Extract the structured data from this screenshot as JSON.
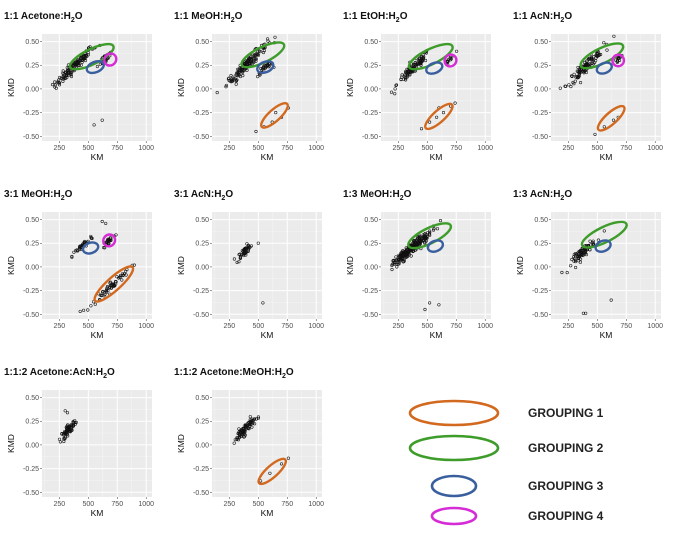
{
  "axis_labels": {
    "x": "KM",
    "y": "KMD"
  },
  "legend": [
    {
      "label": "GROUPING 1",
      "color": "#d2691e"
    },
    {
      "label": "GROUPING 2",
      "color": "#3e9c2a"
    },
    {
      "label": "GROUPING 3",
      "color": "#3a5f9e"
    },
    {
      "label": "GROUPING 4",
      "color": "#d62cd6"
    }
  ],
  "chart_data": [
    {
      "type": "scatter",
      "title": {
        "main": "1:1 Acetone:H",
        "sub": "2",
        "tail": "O"
      },
      "xlim": [
        100,
        1050
      ],
      "ylim": [
        -0.55,
        0.58
      ],
      "xticks": [
        250,
        500,
        750,
        1000
      ],
      "yticks": [
        0.5,
        0.25,
        0.0,
        -0.25,
        -0.5
      ],
      "xlabel": "KM",
      "ylabel": "KMD",
      "clusters": [
        {
          "cx": 380,
          "cy": 0.24,
          "sx": 150,
          "sy": 0.06,
          "n": 130,
          "slope": 0.0012
        },
        {
          "cx": 650,
          "cy": 0.33,
          "sx": 60,
          "sy": 0.05,
          "n": 30,
          "slope": 0.001
        }
      ],
      "points": [
        [
          550,
          -0.38
        ],
        [
          620,
          -0.33
        ],
        [
          560,
          0.44
        ],
        [
          600,
          0.46
        ]
      ],
      "ellipses": [
        {
          "group": 2,
          "cx": 530,
          "cy": 0.34,
          "rx": 380,
          "ry": 0.08,
          "angle": 0.0006
        },
        {
          "group": 3,
          "cx": 560,
          "cy": 0.23,
          "rx": 120,
          "ry": 0.055,
          "angle": 0.0005
        },
        {
          "group": 4,
          "cx": 690,
          "cy": 0.31,
          "rx": 75,
          "ry": 0.06,
          "angle": 0.0012
        }
      ]
    },
    {
      "type": "scatter",
      "title": {
        "main": "1:1 MeOH:H",
        "sub": "2",
        "tail": "O"
      },
      "xlim": [
        100,
        1050
      ],
      "ylim": [
        -0.55,
        0.58
      ],
      "xticks": [
        250,
        500,
        750,
        1000
      ],
      "yticks": [
        0.5,
        0.25,
        0.0,
        -0.25,
        -0.5
      ],
      "xlabel": "KM",
      "ylabel": "KMD",
      "clusters": [
        {
          "cx": 400,
          "cy": 0.26,
          "sx": 160,
          "sy": 0.06,
          "n": 150,
          "slope": 0.0012
        },
        {
          "cx": 560,
          "cy": 0.22,
          "sx": 60,
          "sy": 0.04,
          "n": 30,
          "slope": 0.0008
        }
      ],
      "points": [
        [
          550,
          -0.4
        ],
        [
          620,
          -0.35
        ],
        [
          700,
          -0.3
        ],
        [
          760,
          -0.2
        ],
        [
          480,
          -0.45
        ],
        [
          650,
          -0.25
        ]
      ],
      "ellipses": [
        {
          "group": 1,
          "cx": 640,
          "cy": -0.28,
          "rx": 260,
          "ry": 0.06,
          "angle": 0.0011
        },
        {
          "group": 2,
          "cx": 540,
          "cy": 0.36,
          "rx": 370,
          "ry": 0.08,
          "angle": 0.0006
        },
        {
          "group": 3,
          "cx": 560,
          "cy": 0.23,
          "rx": 110,
          "ry": 0.055,
          "angle": 0.0005
        }
      ]
    },
    {
      "type": "scatter",
      "title": {
        "main": "1:1 EtOH:H",
        "sub": "2",
        "tail": "O"
      },
      "xlim": [
        100,
        1050
      ],
      "ylim": [
        -0.55,
        0.58
      ],
      "xticks": [
        250,
        500,
        750,
        1000
      ],
      "yticks": [
        0.5,
        0.25,
        0.0,
        -0.25,
        -0.5
      ],
      "xlabel": "KM",
      "ylabel": "KMD",
      "clusters": [
        {
          "cx": 380,
          "cy": 0.22,
          "sx": 130,
          "sy": 0.06,
          "n": 110,
          "slope": 0.0012
        },
        {
          "cx": 700,
          "cy": 0.32,
          "sx": 40,
          "sy": 0.04,
          "n": 14,
          "slope": 0.0012
        }
      ],
      "points": [
        [
          450,
          -0.42
        ],
        [
          520,
          -0.35
        ],
        [
          580,
          -0.3
        ],
        [
          640,
          -0.25
        ],
        [
          700,
          -0.18
        ],
        [
          740,
          -0.15
        ],
        [
          600,
          -0.2
        ]
      ],
      "ellipses": [
        {
          "group": 1,
          "cx": 600,
          "cy": -0.29,
          "rx": 270,
          "ry": 0.06,
          "angle": 0.0011
        },
        {
          "group": 2,
          "cx": 530,
          "cy": 0.34,
          "rx": 380,
          "ry": 0.08,
          "angle": 0.0006
        },
        {
          "group": 3,
          "cx": 560,
          "cy": 0.22,
          "rx": 110,
          "ry": 0.05,
          "angle": 0.0005
        },
        {
          "group": 4,
          "cx": 700,
          "cy": 0.3,
          "rx": 70,
          "ry": 0.06,
          "angle": 0.0012
        }
      ]
    },
    {
      "type": "scatter",
      "title": {
        "main": "1:1 AcN:H",
        "sub": "2",
        "tail": "O"
      },
      "xlim": [
        100,
        1050
      ],
      "ylim": [
        -0.55,
        0.58
      ],
      "xticks": [
        250,
        500,
        750,
        1000
      ],
      "yticks": [
        0.5,
        0.25,
        0.0,
        -0.25,
        -0.5
      ],
      "xlabel": "KM",
      "ylabel": "KMD",
      "clusters": [
        {
          "cx": 400,
          "cy": 0.24,
          "sx": 140,
          "sy": 0.06,
          "n": 110,
          "slope": 0.0012
        },
        {
          "cx": 680,
          "cy": 0.31,
          "sx": 40,
          "sy": 0.04,
          "n": 14,
          "slope": 0.0012
        }
      ],
      "points": [
        [
          480,
          -0.48
        ],
        [
          560,
          -0.4
        ],
        [
          640,
          -0.33
        ],
        [
          680,
          -0.3
        ]
      ],
      "ellipses": [
        {
          "group": 1,
          "cx": 620,
          "cy": -0.31,
          "rx": 260,
          "ry": 0.06,
          "angle": 0.0011
        },
        {
          "group": 2,
          "cx": 540,
          "cy": 0.35,
          "rx": 370,
          "ry": 0.08,
          "angle": 0.0006
        },
        {
          "group": 3,
          "cx": 560,
          "cy": 0.22,
          "rx": 100,
          "ry": 0.05,
          "angle": 0.0005
        },
        {
          "group": 4,
          "cx": 680,
          "cy": 0.3,
          "rx": 65,
          "ry": 0.06,
          "angle": 0.0012
        }
      ]
    },
    {
      "type": "scatter",
      "title": {
        "main": "3:1 MeOH:H",
        "sub": "2",
        "tail": "O"
      },
      "xlim": [
        100,
        1050
      ],
      "ylim": [
        -0.55,
        0.58
      ],
      "xticks": [
        250,
        500,
        750,
        1000
      ],
      "yticks": [
        0.5,
        0.25,
        0.0,
        -0.25,
        -0.5
      ],
      "xlabel": "KM",
      "ylabel": "KMD",
      "clusters": [
        {
          "cx": 450,
          "cy": 0.22,
          "sx": 80,
          "sy": 0.04,
          "n": 40,
          "slope": 0.0012
        },
        {
          "cx": 680,
          "cy": 0.28,
          "sx": 50,
          "sy": 0.04,
          "n": 25,
          "slope": 0.0012
        },
        {
          "cx": 700,
          "cy": -0.2,
          "sx": 150,
          "sy": 0.05,
          "n": 60,
          "slope": 0.0011
        }
      ],
      "points": [
        [
          620,
          0.48
        ],
        [
          650,
          0.46
        ],
        [
          430,
          -0.47
        ]
      ],
      "ellipses": [
        {
          "group": 1,
          "cx": 720,
          "cy": -0.18,
          "rx": 400,
          "ry": 0.07,
          "angle": 0.0011
        },
        {
          "group": 3,
          "cx": 520,
          "cy": 0.2,
          "rx": 100,
          "ry": 0.055,
          "angle": 0.0004
        },
        {
          "group": 4,
          "cx": 680,
          "cy": 0.28,
          "rx": 70,
          "ry": 0.06,
          "angle": 0.0012
        }
      ]
    },
    {
      "type": "scatter",
      "title": {
        "main": "3:1 AcN:H",
        "sub": "2",
        "tail": "O"
      },
      "xlim": [
        100,
        1050
      ],
      "ylim": [
        -0.55,
        0.58
      ],
      "xticks": [
        250,
        500,
        750,
        1000
      ],
      "yticks": [
        0.5,
        0.25,
        0.0,
        -0.25,
        -0.5
      ],
      "xlabel": "KM",
      "ylabel": "KMD",
      "clusters": [
        {
          "cx": 380,
          "cy": 0.16,
          "sx": 60,
          "sy": 0.05,
          "n": 45,
          "slope": 0.0012
        }
      ],
      "points": [
        [
          540,
          -0.38
        ],
        [
          500,
          0.25
        ]
      ],
      "ellipses": []
    },
    {
      "type": "scatter",
      "title": {
        "main": "1:3 MeOH:H",
        "sub": "2",
        "tail": "O"
      },
      "xlim": [
        100,
        1050
      ],
      "ylim": [
        -0.55,
        0.58
      ],
      "xticks": [
        250,
        500,
        750,
        1000
      ],
      "yticks": [
        0.5,
        0.25,
        0.0,
        -0.25,
        -0.5
      ],
      "xlabel": "KM",
      "ylabel": "KMD",
      "clusters": [
        {
          "cx": 330,
          "cy": 0.16,
          "sx": 110,
          "sy": 0.06,
          "n": 200,
          "slope": 0.0011
        },
        {
          "cx": 470,
          "cy": 0.3,
          "sx": 100,
          "sy": 0.05,
          "n": 50,
          "slope": 0.0011
        }
      ],
      "points": [
        [
          520,
          -0.38
        ],
        [
          600,
          -0.4
        ],
        [
          480,
          -0.45
        ]
      ],
      "ellipses": [
        {
          "group": 2,
          "cx": 520,
          "cy": 0.33,
          "rx": 370,
          "ry": 0.08,
          "angle": 0.0006
        },
        {
          "group": 3,
          "cx": 570,
          "cy": 0.22,
          "rx": 100,
          "ry": 0.055,
          "angle": 0.0005
        }
      ]
    },
    {
      "type": "scatter",
      "title": {
        "main": "1:3 AcN:H",
        "sub": "2",
        "tail": "O"
      },
      "xlim": [
        100,
        1050
      ],
      "ylim": [
        -0.55,
        0.58
      ],
      "xticks": [
        250,
        500,
        750,
        1000
      ],
      "yticks": [
        0.5,
        0.25,
        0.0,
        -0.25,
        -0.5
      ],
      "xlabel": "KM",
      "ylabel": "KMD",
      "clusters": [
        {
          "cx": 380,
          "cy": 0.16,
          "sx": 90,
          "sy": 0.06,
          "n": 80,
          "slope": 0.0012
        }
      ],
      "points": [
        [
          380,
          -0.49
        ],
        [
          400,
          -0.49
        ],
        [
          620,
          -0.35
        ],
        [
          560,
          0.38
        ]
      ],
      "ellipses": [
        {
          "group": 2,
          "cx": 560,
          "cy": 0.34,
          "rx": 390,
          "ry": 0.08,
          "angle": 0.0006
        },
        {
          "group": 3,
          "cx": 550,
          "cy": 0.22,
          "rx": 100,
          "ry": 0.055,
          "angle": 0.0005
        }
      ]
    },
    {
      "type": "scatter",
      "title": {
        "main": "1:1:2 Acetone:AcN:H",
        "sub": "2",
        "tail": "O"
      },
      "xlim": [
        100,
        1050
      ],
      "ylim": [
        -0.55,
        0.58
      ],
      "xticks": [
        250,
        500,
        750,
        1000
      ],
      "yticks": [
        0.5,
        0.25,
        0.0,
        -0.25,
        -0.5
      ],
      "xlabel": "KM",
      "ylabel": "KMD",
      "clusters": [
        {
          "cx": 330,
          "cy": 0.16,
          "sx": 60,
          "sy": 0.05,
          "n": 70,
          "slope": 0.0012
        }
      ],
      "points": [
        [
          320,
          0.34
        ],
        [
          300,
          0.36
        ]
      ],
      "ellipses": []
    },
    {
      "type": "scatter",
      "title": {
        "main": "1:1:2 Acetone:MeOH:H",
        "sub": "2",
        "tail": "O"
      },
      "xlim": [
        100,
        1050
      ],
      "ylim": [
        -0.55,
        0.58
      ],
      "xticks": [
        250,
        500,
        750,
        1000
      ],
      "yticks": [
        0.5,
        0.25,
        0.0,
        -0.25,
        -0.5
      ],
      "xlabel": "KM",
      "ylabel": "KMD",
      "clusters": [
        {
          "cx": 380,
          "cy": 0.16,
          "sx": 80,
          "sy": 0.06,
          "n": 90,
          "slope": 0.0012
        }
      ],
      "points": [
        [
          520,
          -0.38
        ],
        [
          600,
          -0.3
        ],
        [
          760,
          -0.14
        ],
        [
          700,
          -0.2
        ]
      ],
      "ellipses": [
        {
          "group": 1,
          "cx": 620,
          "cy": -0.28,
          "rx": 270,
          "ry": 0.06,
          "angle": 0.0011
        }
      ]
    }
  ]
}
